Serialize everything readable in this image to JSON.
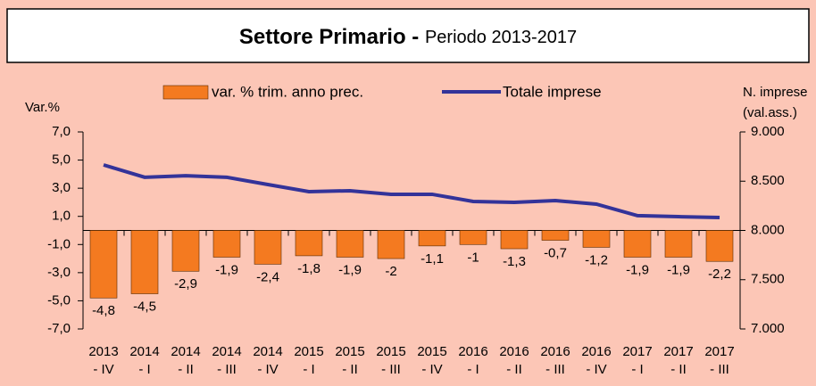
{
  "chart_data": {
    "type": "bar_line",
    "title": "Settore Primario - ",
    "subtitle": "Periodo 2013-2017",
    "y_label": "Var.%",
    "y2_label": [
      "N. imprese",
      "(val.ass.)"
    ],
    "categories": [
      "2013 - IV",
      "2014 - I",
      "2014 - II",
      "2014 - III",
      "2014 - IV",
      "2015 - I",
      "2015 - II",
      "2015 - III",
      "2015 - IV",
      "2016 - I",
      "2016 - II",
      "2016 - III",
      "2016 - IV",
      "2017 - I",
      "2017 - II",
      "2017 - III"
    ],
    "series": [
      {
        "name": "var. % trim. anno prec.",
        "color": "#f47a20",
        "kind": "bar",
        "values": [
          -4.8,
          -4.5,
          -2.9,
          -1.9,
          -2.4,
          -1.8,
          -1.9,
          -2,
          -1.1,
          -1,
          -1.3,
          -0.7,
          -1.2,
          -1.9,
          -1.9,
          -2.2
        ],
        "value_labels": [
          "-4,8",
          "-4,5",
          "-2,9",
          "-1,9",
          "-2,4",
          "-1,8",
          "-1,9",
          "-2",
          "-1,1",
          "-1",
          "-1,3",
          "-0,7",
          "-1,2",
          "-1,9",
          "-1,9",
          "-2,2"
        ]
      },
      {
        "name": "Totale imprese",
        "color": "#333399",
        "kind": "line",
        "axis": "y2",
        "values": [
          8665,
          8540,
          8555,
          8540,
          8466,
          8394,
          8403,
          8367,
          8367,
          8294,
          8285,
          8303,
          8267,
          8150,
          8140,
          8131
        ]
      }
    ],
    "ylim": [
      -7,
      7
    ],
    "yticks": [
      {
        "value": -7,
        "label": "-7,0"
      },
      {
        "value": -5,
        "label": "-5,0"
      },
      {
        "value": -3,
        "label": "-3,0"
      },
      {
        "value": -1,
        "label": "-1,0"
      },
      {
        "value": 1,
        "label": "1,0"
      },
      {
        "value": 3,
        "label": "3,0"
      },
      {
        "value": 5,
        "label": "5,0"
      },
      {
        "value": 7,
        "label": "7,0"
      }
    ],
    "y2lim": [
      7000,
      9000
    ],
    "y2ticks": [
      {
        "value": 7000,
        "label": "7.000"
      },
      {
        "value": 7500,
        "label": "7.500"
      },
      {
        "value": 8000,
        "label": "8.000"
      },
      {
        "value": 8500,
        "label": "8.500"
      },
      {
        "value": 9000,
        "label": "9.000"
      }
    ],
    "legend": "top"
  }
}
